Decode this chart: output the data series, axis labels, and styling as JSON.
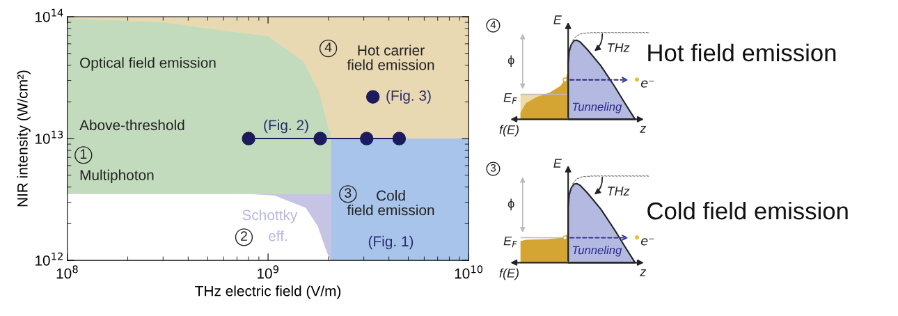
{
  "chart_data": [
    {
      "type": "area",
      "xlabel": "THz electric field (V/m)",
      "ylabel": "NIR intensity (W/cm²)",
      "log": "xy",
      "xlim": [
        100000000.0,
        10000000000.0
      ],
      "ylim": [
        1000000000000.0,
        100000000000000.0
      ],
      "xticks": [
        {
          "value": 100000000.0,
          "label": "10$^{8}$"
        },
        {
          "value": 1000000000.0,
          "label": "10$^{9}$"
        },
        {
          "value": 10000000000.0,
          "label": "10$^{10}$"
        }
      ],
      "yticks": [
        {
          "value": 1000000000000.0,
          "label": "10$^{12}$"
        },
        {
          "value": 10000000000000.0,
          "label": "10$^{13}$"
        },
        {
          "value": 100000000000000.0,
          "label": "10$^{14}$"
        }
      ],
      "grid": false,
      "legend": false,
      "series": [
        {
          "type": "area",
          "color": "#e9d9b3",
          "x": [
            100000000.0,
            10000000000.0
          ],
          "values": [
            100000000000000.0,
            100000000000000.0
          ]
        },
        {
          "type": "area",
          "color": "#c3dbbd",
          "x": [
            100000000.0,
            300000000.0,
            500000000.0,
            1000000000.0,
            1500000000.0,
            1800000000.0,
            2000000000.0,
            2060000000.0
          ],
          "values": [
            97000000000000.0,
            90000000000000.0,
            80000000000000.0,
            69000000000000.0,
            43000000000000.0,
            24000000000000.0,
            12000000000000.0,
            11000000000000.0
          ]
        },
        {
          "type": "area",
          "color": "#c6c4e4",
          "x": [
            820000000.0,
            2060000000.0
          ],
          "values": [
            3500000000000.0,
            3500000000000.0
          ]
        },
        {
          "type": "area",
          "color": "#ffffff",
          "x": [
            100000000.0,
            820000000.0,
            1080000000.0,
            1540000000.0,
            1770000000.0,
            1930000000.0,
            2040000000.0
          ],
          "values": [
            3500000000000.0,
            3500000000000.0,
            3400000000000.0,
            2700000000000.0,
            1900000000000.0,
            1260000000000.0,
            1000000000000.0
          ]
        },
        {
          "type": "area",
          "color": "#a8c4ea",
          "x": [
            2060000000.0,
            10000000000.0
          ],
          "values": [
            10000000000000.0,
            10000000000000.0
          ]
        },
        {
          "type": "line",
          "color": "#1c1c5c",
          "marker": "circle",
          "line_style": "solid",
          "x": [
            800000000.0,
            1820000000.0,
            3100000000.0,
            4500000000.0
          ],
          "values": [
            10000000000000.0,
            10000000000000.0,
            10000000000000.0,
            10000000000000.0
          ]
        },
        {
          "type": "scatter",
          "color": "#1c1c5c",
          "marker": "circle",
          "x": [
            3330000000.0
          ],
          "values": [
            22000000000000.0
          ]
        }
      ],
      "annotations": [
        "Optical field emission",
        "Above-threshold",
        "1",
        "Multiphoton",
        "4",
        "Hot carrier\nfield emission",
        "(Fig. 3)",
        "(Fig. 2)",
        "3",
        "Cold\nfield emission",
        "(Fig. 1)",
        "Schottky",
        "eff.",
        "2"
      ]
    },
    {
      "type": "other",
      "annotations": [
        "4",
        "E",
        "ϕ",
        "E$_{F}$",
        "THz",
        "e⁻",
        "Tunneling",
        "f(E)",
        "z",
        "Hot field emission"
      ]
    },
    {
      "type": "other",
      "annotations": [
        "3",
        "E",
        "ϕ",
        "E$_{F}$",
        "THz",
        "e⁻",
        "Tunneling",
        "f(E)",
        "z",
        "Cold field emission"
      ]
    }
  ]
}
